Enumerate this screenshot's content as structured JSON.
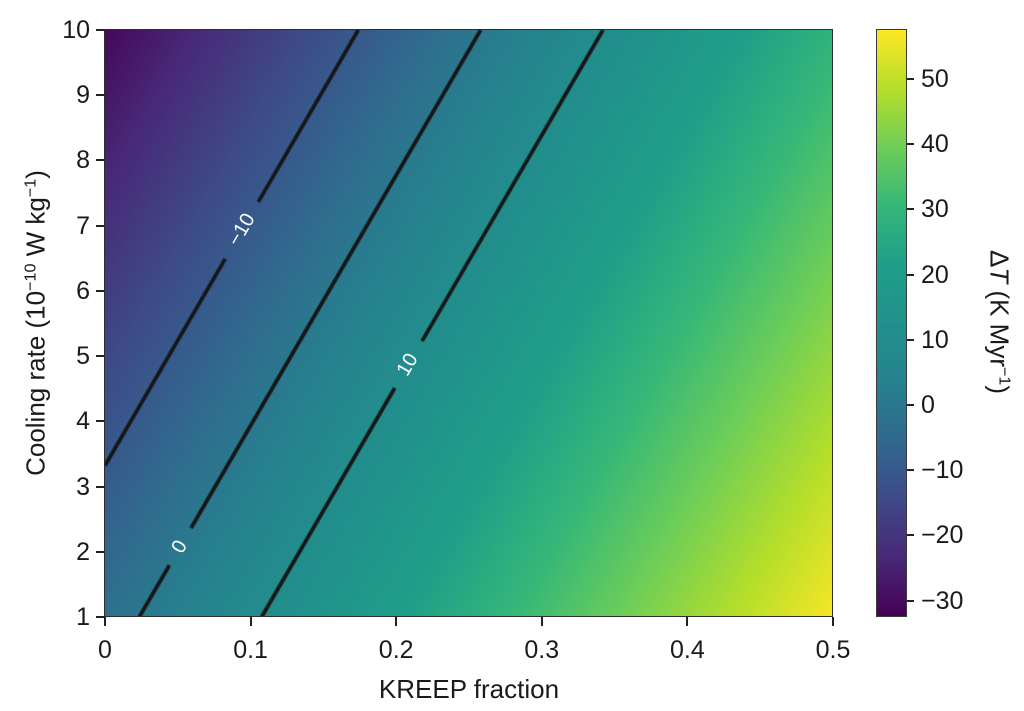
{
  "chart_data": {
    "type": "heatmap",
    "title": "",
    "xlabel": "KREEP fraction",
    "ylabel": "Cooling rate (10⁻¹⁰ W kg⁻¹)",
    "colorbar_label": "ΔT (K Myr⁻¹)",
    "xlim": [
      0,
      0.5
    ],
    "ylim": [
      1,
      10
    ],
    "x_ticks": [
      0,
      0.1,
      0.2,
      0.3,
      0.4,
      0.5
    ],
    "x_tick_labels": [
      "0",
      "0.1",
      "0.2",
      "0.3",
      "0.4",
      "0.5"
    ],
    "y_ticks": [
      1,
      2,
      3,
      4,
      5,
      6,
      7,
      8,
      9,
      10
    ],
    "y_tick_labels": [
      "1",
      "2",
      "3",
      "4",
      "5",
      "6",
      "7",
      "8",
      "9",
      "10"
    ],
    "colorbar_ticks": [
      -30,
      -20,
      -10,
      0,
      10,
      20,
      30,
      40,
      50
    ],
    "colorbar_tick_labels": [
      "−30",
      "−20",
      "−10",
      "0",
      "10",
      "20",
      "30",
      "40",
      "50"
    ],
    "vmin": -32.5,
    "vmax": 57.5,
    "field_model": {
      "description": "dT = a*x + b*y + c, x = KREEP fraction, y = cooling rate",
      "a": 119,
      "b": -3.1,
      "c": 0.3
    },
    "grid_sample": {
      "x": [
        0,
        0.1,
        0.2,
        0.3,
        0.4,
        0.5
      ],
      "y": [
        1,
        2,
        3,
        4,
        5,
        6,
        7,
        8,
        9,
        10
      ],
      "values_by_y": [
        [
          -2.8,
          9.1,
          21.0,
          32.9,
          44.8,
          56.7
        ],
        [
          -5.9,
          6.0,
          17.9,
          29.8,
          41.7,
          53.6
        ],
        [
          -9.0,
          2.9,
          14.8,
          26.7,
          38.6,
          50.5
        ],
        [
          -12.1,
          -0.2,
          11.7,
          23.6,
          35.5,
          47.4
        ],
        [
          -15.2,
          -3.3,
          8.6,
          20.5,
          32.4,
          44.3
        ],
        [
          -18.3,
          -6.4,
          5.5,
          17.4,
          29.3,
          41.2
        ],
        [
          -21.4,
          -9.5,
          2.4,
          14.3,
          26.2,
          38.1
        ],
        [
          -24.5,
          -12.6,
          -0.7,
          11.2,
          23.1,
          35.0
        ],
        [
          -27.6,
          -15.7,
          -3.8,
          8.1,
          20.0,
          31.9
        ],
        [
          -30.7,
          -18.8,
          -6.9,
          5.0,
          16.9,
          28.8
        ]
      ]
    },
    "contours": [
      {
        "level": -10,
        "label": "−10",
        "label_frac": 0.54
      },
      {
        "level": 0,
        "label": "0",
        "label_frac": 0.12
      },
      {
        "level": 10,
        "label": "10",
        "label_frac": 0.43
      }
    ],
    "colormap": "viridis",
    "colormap_stops": [
      [
        0.0,
        "#440154"
      ],
      [
        0.1,
        "#482878"
      ],
      [
        0.2,
        "#3e4a89"
      ],
      [
        0.3,
        "#31688e"
      ],
      [
        0.4,
        "#26828e"
      ],
      [
        0.5,
        "#21918c"
      ],
      [
        0.6,
        "#1f9e89"
      ],
      [
        0.7,
        "#35b779"
      ],
      [
        0.8,
        "#6ece58"
      ],
      [
        0.9,
        "#b5de2b"
      ],
      [
        1.0,
        "#fde725"
      ]
    ],
    "colors": {
      "contour_line": "#161616",
      "contour_label": "#ffffff",
      "axis": "#2e2e2e",
      "text": "#1a1a1a",
      "background": "#ffffff"
    },
    "legend_position": "colorbar-right",
    "grid": false
  },
  "labels": {
    "ylabel_parts": {
      "pre": "Cooling rate (10",
      "sup1": "−10",
      "mid": " W kg",
      "sup2": "−1",
      "post": ")"
    },
    "cbar_parts": {
      "delta": "Δ",
      "T": "T",
      "mid": " (K Myr",
      "sup": "−1",
      "post": ")"
    }
  }
}
